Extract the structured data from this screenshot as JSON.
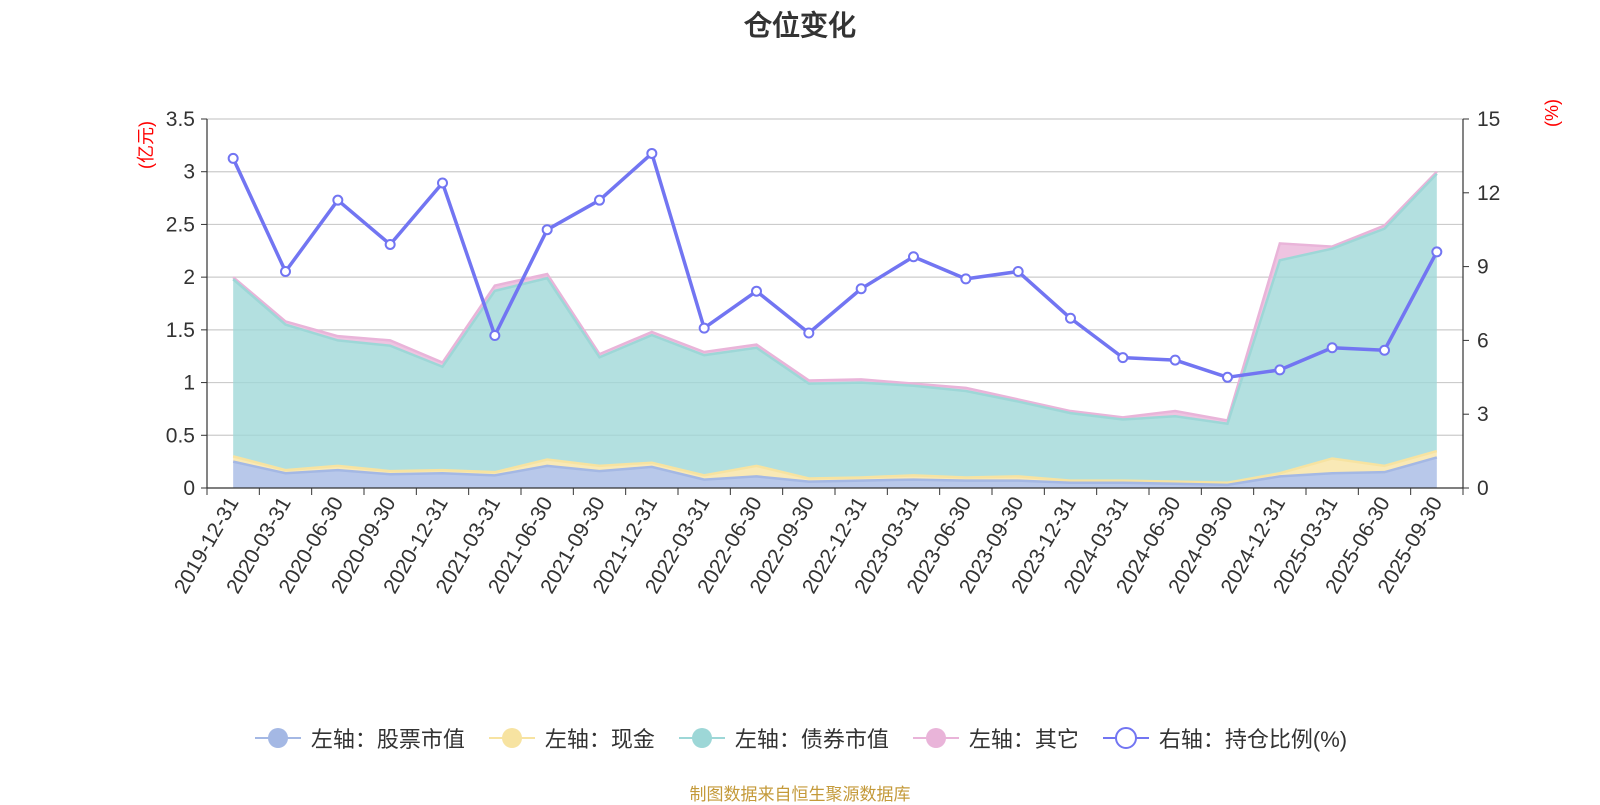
{
  "title": "仓位变化",
  "source_note": "制图数据来自恒生聚源数据库",
  "colors": {
    "stock": "#a4b8e4",
    "cash": "#f7e3a1",
    "bond": "#9dd7d7",
    "other": "#e9b4d9",
    "ratio": "#7275f2",
    "axis_unit": "#ff0000",
    "grid": "#cccccc",
    "axis": "#333333"
  },
  "chart_data": {
    "type": "area",
    "title": "仓位变化",
    "x": [
      "2019-12-31",
      "2020-03-31",
      "2020-06-30",
      "2020-09-30",
      "2020-12-31",
      "2021-03-31",
      "2021-06-30",
      "2021-09-30",
      "2021-12-31",
      "2022-03-31",
      "2022-06-30",
      "2022-09-30",
      "2022-12-31",
      "2023-03-31",
      "2023-06-30",
      "2023-09-30",
      "2023-12-31",
      "2024-03-31",
      "2024-06-30",
      "2024-09-30",
      "2024-12-31",
      "2025-03-31",
      "2025-06-30",
      "2025-09-30"
    ],
    "left_axis": {
      "unit": "(亿元)",
      "ylim": [
        0,
        3.5
      ],
      "ticks": [
        "0",
        "0.5",
        "1",
        "1.5",
        "2",
        "2.5",
        "3",
        "3.5"
      ]
    },
    "right_axis": {
      "unit": "(%)",
      "ylim": [
        0,
        15
      ],
      "ticks": [
        "0",
        "3",
        "6",
        "9",
        "12",
        "15"
      ]
    },
    "stacked": true,
    "grid": true,
    "legend_position": "bottom",
    "series": [
      {
        "name": "左轴：股票市值",
        "axis": "left",
        "kind": "area",
        "values": [
          0.25,
          0.14,
          0.17,
          0.13,
          0.14,
          0.12,
          0.21,
          0.16,
          0.2,
          0.08,
          0.11,
          0.06,
          0.07,
          0.08,
          0.07,
          0.07,
          0.05,
          0.05,
          0.04,
          0.03,
          0.11,
          0.14,
          0.15,
          0.29
        ]
      },
      {
        "name": "左轴：现金",
        "axis": "left",
        "kind": "area",
        "values": [
          0.05,
          0.03,
          0.04,
          0.03,
          0.03,
          0.03,
          0.06,
          0.05,
          0.04,
          0.04,
          0.1,
          0.03,
          0.03,
          0.04,
          0.03,
          0.04,
          0.02,
          0.02,
          0.02,
          0.02,
          0.03,
          0.14,
          0.06,
          0.06
        ]
      },
      {
        "name": "左轴：债券市值",
        "axis": "left",
        "kind": "area",
        "values": [
          1.68,
          1.38,
          1.19,
          1.19,
          0.98,
          1.72,
          1.72,
          1.03,
          1.21,
          1.14,
          1.12,
          0.9,
          0.9,
          0.85,
          0.82,
          0.71,
          0.64,
          0.58,
          0.62,
          0.56,
          2.02,
          1.99,
          2.25,
          2.63
        ]
      },
      {
        "name": "左轴：其它",
        "axis": "left",
        "kind": "area",
        "values": [
          0.02,
          0.03,
          0.04,
          0.05,
          0.04,
          0.05,
          0.04,
          0.03,
          0.03,
          0.03,
          0.03,
          0.03,
          0.03,
          0.02,
          0.03,
          0.02,
          0.02,
          0.02,
          0.05,
          0.03,
          0.16,
          0.02,
          0.03,
          0.02
        ]
      },
      {
        "name": "右轴：持仓比例(%)",
        "axis": "right",
        "kind": "line",
        "values": [
          13.4,
          8.8,
          11.7,
          9.9,
          12.4,
          6.2,
          10.5,
          11.7,
          13.6,
          6.5,
          8.0,
          6.3,
          8.1,
          9.4,
          8.5,
          8.8,
          6.9,
          5.3,
          5.2,
          4.5,
          4.8,
          5.7,
          5.6,
          9.6
        ]
      }
    ]
  }
}
